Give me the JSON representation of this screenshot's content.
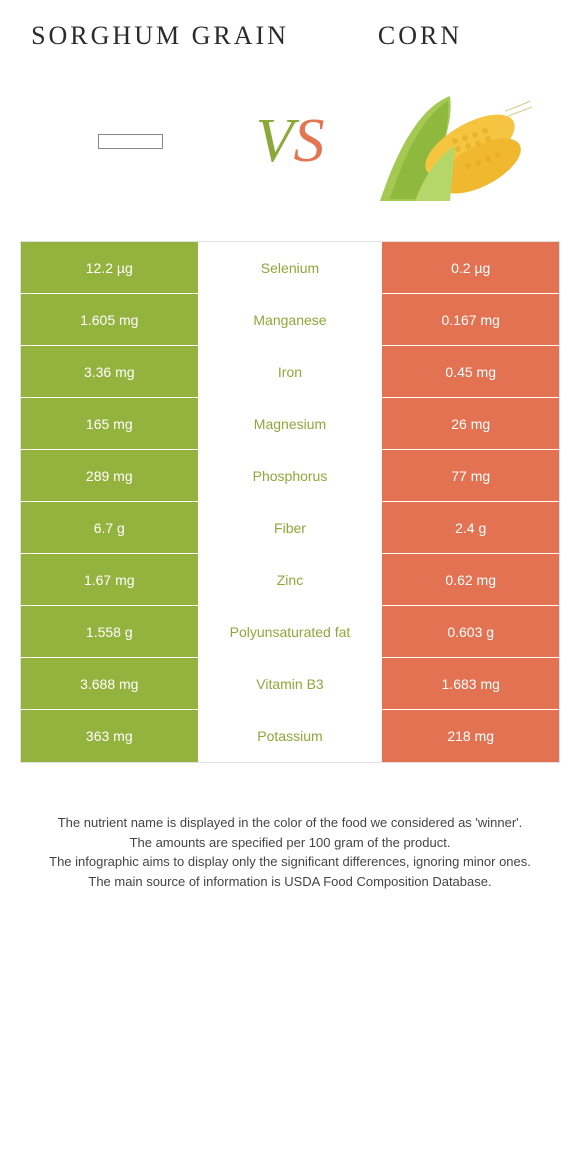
{
  "header": {
    "left_title": "Sorghum grain",
    "right_title": "Corn"
  },
  "vs_label": {
    "v": "V",
    "s": "S"
  },
  "colors": {
    "left_bg": "#94b23e",
    "right_bg": "#e27251",
    "left_text": "#8da83a",
    "right_text": "#e37551",
    "neutral_text": "#888888"
  },
  "rows": [
    {
      "left": "12.2 µg",
      "label": "Selenium",
      "right": "0.2 µg",
      "winner": "left"
    },
    {
      "left": "1.605 mg",
      "label": "Manganese",
      "right": "0.167 mg",
      "winner": "left"
    },
    {
      "left": "3.36 mg",
      "label": "Iron",
      "right": "0.45 mg",
      "winner": "left"
    },
    {
      "left": "165 mg",
      "label": "Magnesium",
      "right": "26 mg",
      "winner": "left"
    },
    {
      "left": "289 mg",
      "label": "Phosphorus",
      "right": "77 mg",
      "winner": "left"
    },
    {
      "left": "6.7 g",
      "label": "Fiber",
      "right": "2.4 g",
      "winner": "left"
    },
    {
      "left": "1.67 mg",
      "label": "Zinc",
      "right": "0.62 mg",
      "winner": "left"
    },
    {
      "left": "1.558 g",
      "label": "Polyunsaturated fat",
      "right": "0.603 g",
      "winner": "left"
    },
    {
      "left": "3.688 mg",
      "label": "Vitamin B3",
      "right": "1.683 mg",
      "winner": "left"
    },
    {
      "left": "363 mg",
      "label": "Potassium",
      "right": "218 mg",
      "winner": "left"
    }
  ],
  "footer": {
    "line1": "The nutrient name is displayed in the color of the food we considered as 'winner'.",
    "line2": "The amounts are specified per 100 gram of the product.",
    "line3": "The infographic aims to display only the significant differences, ignoring minor ones.",
    "line4": "The main source of information is USDA Food Composition Database."
  }
}
